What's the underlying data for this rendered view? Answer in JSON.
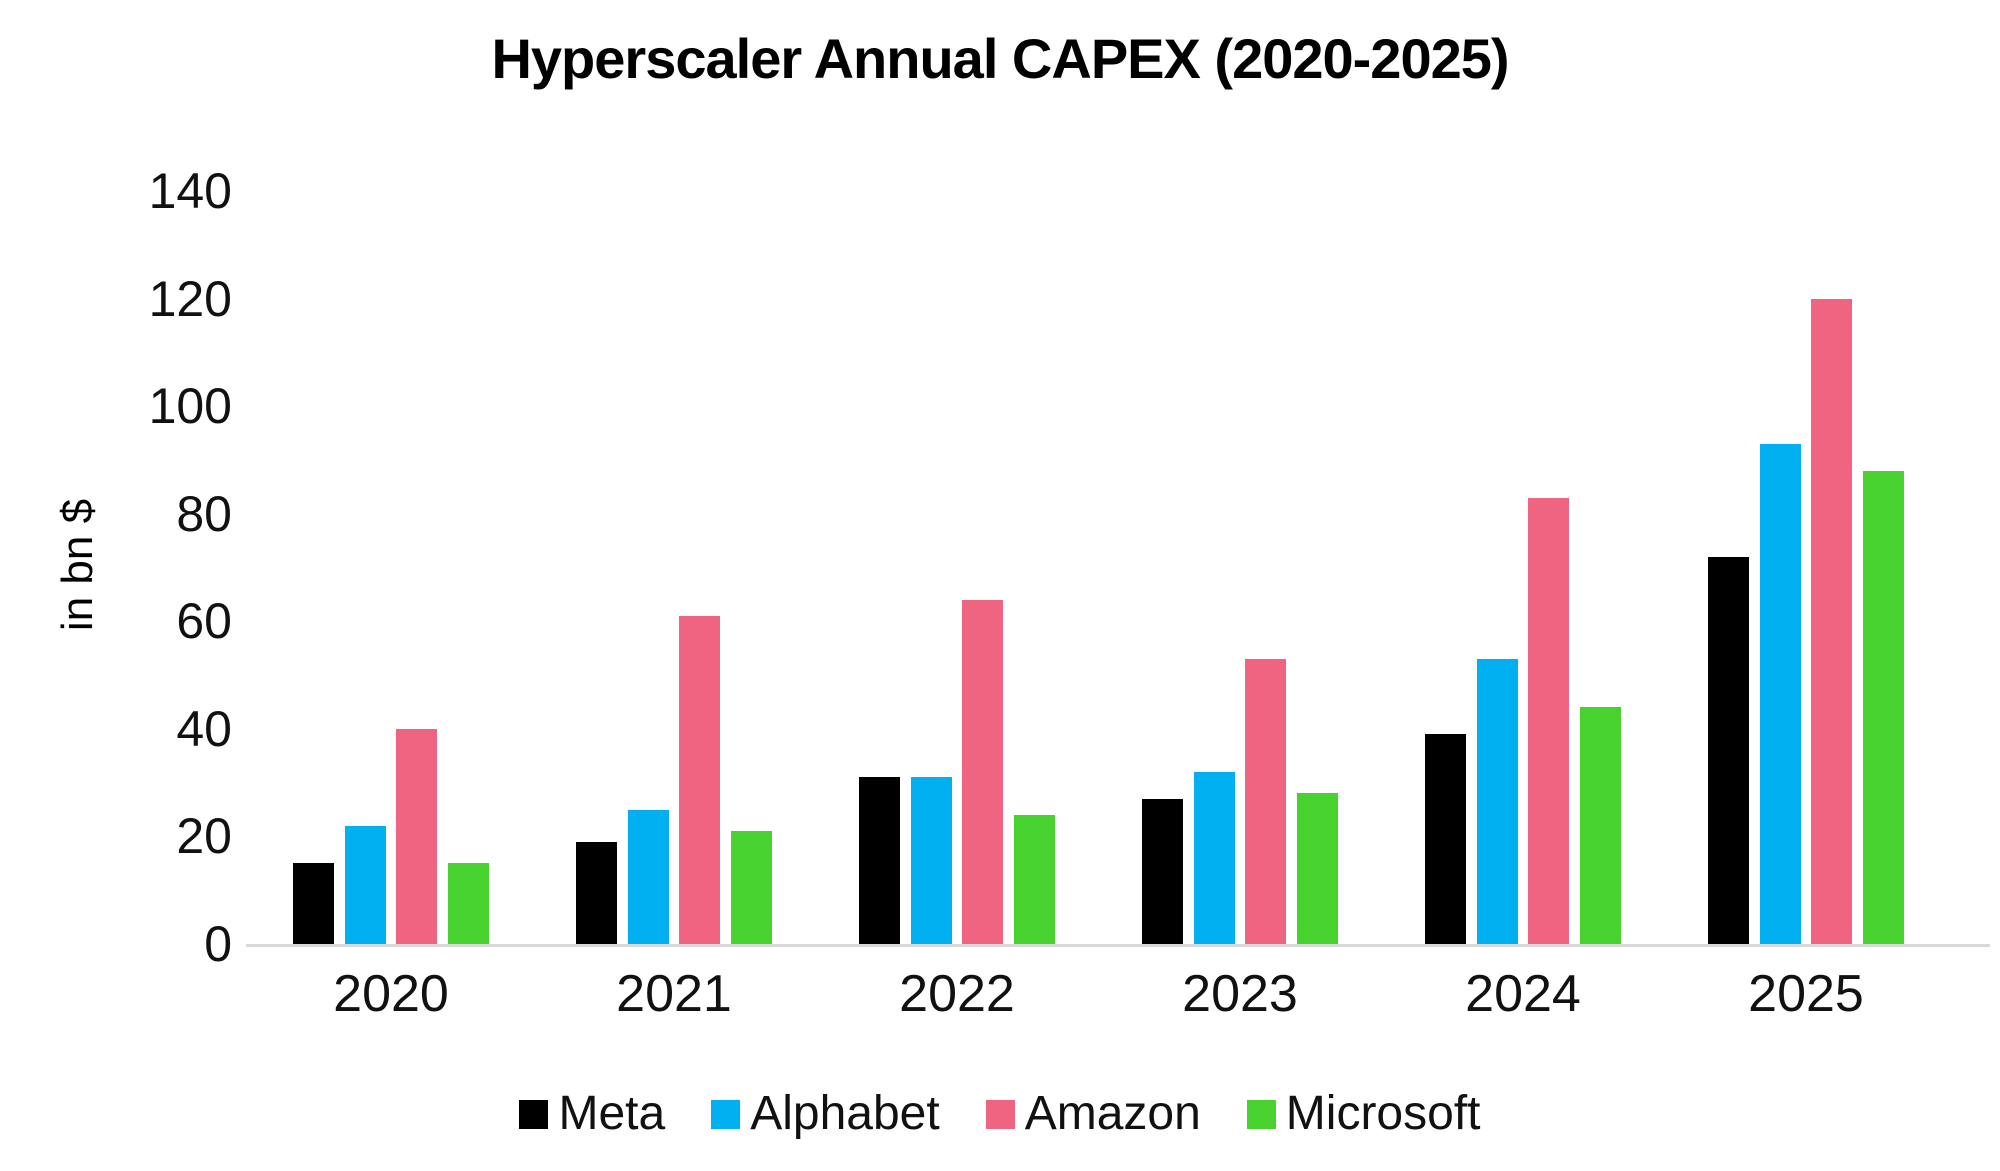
{
  "chart_data": {
    "type": "bar",
    "title": "Hyperscaler Annual CAPEX (2020-2025)",
    "ylabel": "in bn $",
    "xlabel": "",
    "ylim": [
      0,
      140
    ],
    "yticks": [
      0,
      20,
      40,
      60,
      80,
      100,
      120,
      140
    ],
    "grid": false,
    "legend_position": "bottom",
    "axis_line_color": "#D9D9D9",
    "categories": [
      "2020",
      "2021",
      "2022",
      "2023",
      "2024",
      "2025"
    ],
    "series": [
      {
        "name": "Meta",
        "color": "#000000",
        "values": [
          15,
          19,
          31,
          27,
          39,
          72
        ]
      },
      {
        "name": "Alphabet",
        "color": "#00B0F0",
        "values": [
          22,
          25,
          31,
          32,
          53,
          93
        ]
      },
      {
        "name": "Amazon",
        "color": "#EF6480",
        "values": [
          40,
          61,
          64,
          53,
          83,
          120
        ]
      },
      {
        "name": "Microsoft",
        "color": "#47D22D",
        "values": [
          15,
          21,
          24,
          28,
          44,
          88
        ]
      }
    ]
  }
}
